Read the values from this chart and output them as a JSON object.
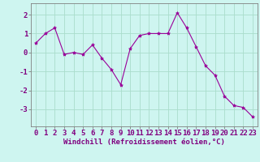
{
  "x": [
    0,
    1,
    2,
    3,
    4,
    5,
    6,
    7,
    8,
    9,
    10,
    11,
    12,
    13,
    14,
    15,
    16,
    17,
    18,
    19,
    20,
    21,
    22,
    23
  ],
  "y": [
    0.5,
    1.0,
    1.3,
    -0.1,
    0.0,
    -0.1,
    0.4,
    -0.3,
    -0.9,
    -1.7,
    0.2,
    0.9,
    1.0,
    1.0,
    1.0,
    2.1,
    1.3,
    0.3,
    -0.7,
    -1.2,
    -2.3,
    -2.8,
    -2.9,
    -3.4
  ],
  "line_color": "#990099",
  "marker": "*",
  "marker_size": 3,
  "bg_color": "#cef5f0",
  "grid_color": "#aaddcc",
  "xlabel": "Windchill (Refroidissement éolien,°C)",
  "xlabel_color": "#800080",
  "xlabel_fontsize": 6.5,
  "yticks": [
    -3,
    -2,
    -1,
    0,
    1,
    2
  ],
  "ylim": [
    -3.9,
    2.6
  ],
  "xlim": [
    -0.5,
    23.5
  ],
  "tick_fontsize": 6.5,
  "tick_color": "#800080",
  "spine_color": "#808080"
}
